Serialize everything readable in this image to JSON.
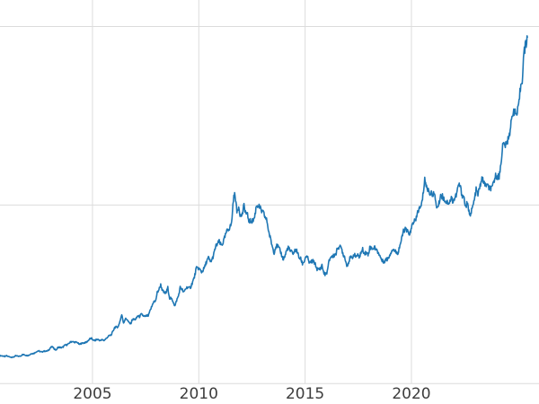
{
  "chart_data": {
    "type": "line",
    "title": "",
    "line_color": "#1f77b4",
    "grid_color": "#dcdcdc",
    "tick_label_color": "#3d3d3d",
    "background_color": "#ffffff",
    "legend": "none",
    "grid": "on",
    "x_tick_labels": [
      "2005",
      "2010",
      "2015",
      "2020"
    ],
    "x_tick_values": [
      2005,
      2010,
      2015,
      2020
    ],
    "y_grid_values": [
      0,
      1750,
      3500
    ],
    "xlim": [
      2000.65,
      2026.0
    ],
    "ylim": [
      -200,
      3760
    ],
    "series": [
      {
        "name": "price",
        "x_start": 2000.625,
        "x_step_years": 0.08333333,
        "values": [
          274,
          273,
          270,
          266,
          272,
          265,
          262,
          258,
          260,
          272,
          270,
          267,
          272,
          284,
          283,
          276,
          276,
          281,
          295,
          294,
          302,
          314,
          321,
          313,
          310,
          319,
          317,
          319,
          333,
          357,
          359,
          340,
          328,
          355,
          356,
          351,
          360,
          379,
          379,
          389,
          407,
          414,
          405,
          406,
          403,
          384,
          392,
          398,
          400,
          405,
          420,
          439,
          442,
          424,
          423,
          434,
          429,
          421,
          430,
          424,
          437,
          456,
          470,
          476,
          510,
          550,
          555,
          557,
          611,
          675,
          596,
          634,
          632,
          598,
          586,
          627,
          630,
          631,
          665,
          655,
          679,
          667,
          655,
          665,
          665,
          713,
          755,
          806,
          803,
          890,
          922,
          968,
          910,
          889,
          889,
          940,
          839,
          830,
          807,
          760,
          816,
          858,
          943,
          924,
          890,
          929,
          946,
          934,
          949,
          997,
          1043,
          1127,
          1135,
          1118,
          1095,
          1113,
          1149,
          1205,
          1233,
          1193,
          1216,
          1271,
          1342,
          1370,
          1391,
          1356,
          1373,
          1424,
          1480,
          1513,
          1529,
          1573,
          1810,
          1860,
          1680,
          1739,
          1640,
          1656,
          1743,
          1674,
          1650,
          1587,
          1597,
          1594,
          1630,
          1745,
          1747,
          1722,
          1688,
          1671,
          1628,
          1593,
          1485,
          1414,
          1343,
          1286,
          1348,
          1348,
          1316,
          1276,
          1221,
          1244,
          1300,
          1336,
          1299,
          1288,
          1279,
          1311,
          1295,
          1237,
          1222,
          1176,
          1200,
          1250,
          1227,
          1178,
          1197,
          1198,
          1181,
          1128,
          1117,
          1125,
          1159,
          1086,
          1068,
          1098,
          1200,
          1246,
          1242,
          1260,
          1276,
          1337,
          1340,
          1327,
          1266,
          1238,
          1152,
          1192,
          1234,
          1231,
          1266,
          1246,
          1260,
          1237,
          1283,
          1314,
          1280,
          1282,
          1264,
          1331,
          1330,
          1325,
          1334,
          1303,
          1281,
          1238,
          1201,
          1198,
          1215,
          1221,
          1250,
          1292,
          1320,
          1301,
          1286,
          1284,
          1359,
          1413,
          1500,
          1511,
          1495,
          1471,
          1479,
          1561,
          1597,
          1592,
          1683,
          1716,
          1732,
          1843,
          2010,
          1922,
          1900,
          1866,
          1858,
          1867,
          1808,
          1718,
          1762,
          1850,
          1835,
          1807,
          1784,
          1777,
          1777,
          1820,
          1787,
          1817,
          1856,
          1948,
          1937,
          1850,
          1836,
          1732,
          1765,
          1681,
          1664,
          1726,
          1797,
          1898,
          1855,
          1913,
          2000,
          1992,
          1943,
          1951,
          1918,
          1916,
          1906,
          1984,
          2033,
          2034,
          2023,
          2160,
          2335,
          2351,
          2327,
          2398,
          2470,
          2568,
          2690,
          2651,
          2636,
          2708,
          2897,
          2984,
          3240,
          3320,
          3390
        ]
      }
    ]
  }
}
